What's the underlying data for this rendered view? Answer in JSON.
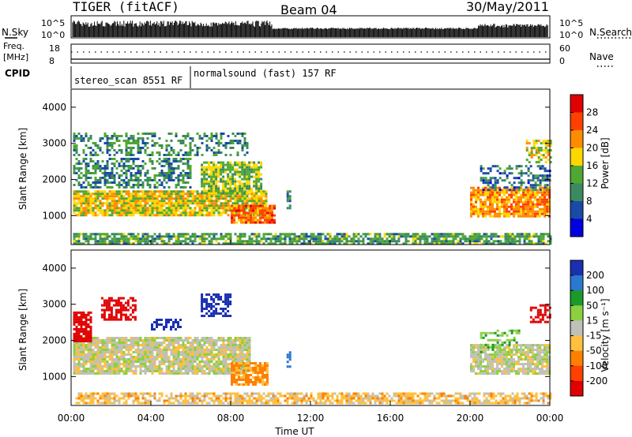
{
  "header": {
    "station": "TIGER (fitACF)",
    "beam": "Beam 04",
    "date": "30/May/2011"
  },
  "aux": {
    "nsky_label": "N.Sky",
    "nsearch_label": "N.Search",
    "freq_label_1": "Freq.",
    "freq_label_2": "[MHz]",
    "nave_label": "Nave",
    "cpid_label": "CPID",
    "left_ticks_top": [
      "10^5",
      "10^0"
    ],
    "right_ticks_top": [
      "10^5",
      "10^0"
    ],
    "freq_ticks": [
      "18",
      "8"
    ],
    "nave_ticks": [
      "60",
      "0"
    ],
    "cpid_segments": [
      {
        "label": "stereo_scan 8551 RF",
        "start_hour": 0,
        "end_hour": 6
      },
      {
        "label": "normalsound (fast) 157 RF",
        "start_hour": 6,
        "end_hour": 24
      }
    ]
  },
  "colorbars": {
    "power": {
      "title": "Power [dB]",
      "ticks": [
        "28",
        "24",
        "20",
        "16",
        "12",
        "8",
        "4"
      ],
      "colors": [
        "#e00000",
        "#ff4000",
        "#ff8c00",
        "#ffd700",
        "#4fa832",
        "#3a8a5f",
        "#1a4aa8",
        "#0000e0"
      ]
    },
    "velocity": {
      "title": "Velocity [m s⁻¹]",
      "ticks": [
        "200",
        "100",
        "50",
        "15",
        "-15",
        "-50",
        "-100",
        "-200"
      ],
      "colors": [
        "#1a30b0",
        "#2a78d0",
        "#1a9a2a",
        "#8cd040",
        "#c0c0b8",
        "#ffc040",
        "#ff8000",
        "#ff4000",
        "#e00000"
      ]
    }
  },
  "chart_data": [
    {
      "type": "heatmap",
      "title": "Beam 04",
      "ylabel": "Slant Range [km]",
      "xlabel": "Time UT",
      "x_ticks": [
        "00:00",
        "04:00",
        "08:00",
        "12:00",
        "16:00",
        "20:00",
        "00:00"
      ],
      "y_ticks": [
        "4000",
        "3000",
        "2000",
        "1000"
      ],
      "xlim_hours": [
        0,
        24
      ],
      "ylim_km": [
        200,
        4500
      ],
      "quantity": "power_db",
      "regions": [
        {
          "t0": 0.1,
          "t1": 9.8,
          "r0": 1000,
          "r1": 1700,
          "v": 18,
          "density": 0.9
        },
        {
          "t0": 0.1,
          "t1": 6.0,
          "r0": 1800,
          "r1": 2600,
          "v": 10,
          "density": 0.55
        },
        {
          "t0": 6.5,
          "t1": 9.5,
          "r0": 1600,
          "r1": 2500,
          "v": 15,
          "density": 0.8
        },
        {
          "t0": 8.0,
          "t1": 10.2,
          "r0": 800,
          "r1": 1300,
          "v": 24,
          "density": 0.9
        },
        {
          "t0": 0.1,
          "t1": 8.8,
          "r0": 2700,
          "r1": 3300,
          "v": 10,
          "density": 0.4
        },
        {
          "t0": 0.1,
          "t1": 24.0,
          "r0": 250,
          "r1": 520,
          "v": 12,
          "density": 0.75
        },
        {
          "t0": 10.8,
          "t1": 11.0,
          "r0": 1200,
          "r1": 1700,
          "v": 8,
          "density": 0.6
        },
        {
          "t0": 20.0,
          "t1": 24.0,
          "r0": 1000,
          "r1": 1800,
          "v": 22,
          "density": 0.85
        },
        {
          "t0": 20.5,
          "t1": 24.0,
          "r0": 1700,
          "r1": 2400,
          "v": 8,
          "density": 0.5
        },
        {
          "t0": 22.8,
          "t1": 24.0,
          "r0": 2500,
          "r1": 3100,
          "v": 18,
          "density": 0.6
        }
      ]
    },
    {
      "type": "heatmap",
      "ylabel": "Slant Range [km]",
      "xlabel": "Time UT",
      "x_ticks": [
        "00:00",
        "04:00",
        "08:00",
        "12:00",
        "16:00",
        "20:00",
        "00:00"
      ],
      "y_ticks": [
        "4000",
        "3000",
        "2000",
        "1000"
      ],
      "xlim_hours": [
        0,
        24
      ],
      "ylim_km": [
        200,
        4500
      ],
      "quantity": "velocity_m_s",
      "regions": [
        {
          "t0": 0.1,
          "t1": 9.0,
          "r0": 1100,
          "r1": 2100,
          "v": 0,
          "density": 0.9
        },
        {
          "t0": 0.1,
          "t1": 1.0,
          "r0": 2000,
          "r1": 2800,
          "v": -250,
          "density": 0.8
        },
        {
          "t0": 1.5,
          "t1": 3.2,
          "r0": 2600,
          "r1": 3200,
          "v": -250,
          "density": 0.6
        },
        {
          "t0": 4.0,
          "t1": 5.5,
          "r0": 2300,
          "r1": 2600,
          "v": 250,
          "density": 0.5
        },
        {
          "t0": 6.5,
          "t1": 8.0,
          "r0": 2700,
          "r1": 3300,
          "v": 250,
          "density": 0.55
        },
        {
          "t0": 8.0,
          "t1": 9.8,
          "r0": 800,
          "r1": 1400,
          "v": -60,
          "density": 0.8
        },
        {
          "t0": 0.1,
          "t1": 24.0,
          "r0": 250,
          "r1": 560,
          "v": -30,
          "density": 0.7
        },
        {
          "t0": 10.8,
          "t1": 11.0,
          "r0": 1200,
          "r1": 1700,
          "v": 150,
          "density": 0.6
        },
        {
          "t0": 20.0,
          "t1": 24.0,
          "r0": 1100,
          "r1": 1900,
          "v": 0,
          "density": 0.85
        },
        {
          "t0": 20.5,
          "t1": 22.5,
          "r0": 1700,
          "r1": 2300,
          "v": 40,
          "density": 0.4
        },
        {
          "t0": 23.0,
          "t1": 24.0,
          "r0": 2500,
          "r1": 3000,
          "v": -250,
          "density": 0.6
        }
      ]
    }
  ]
}
